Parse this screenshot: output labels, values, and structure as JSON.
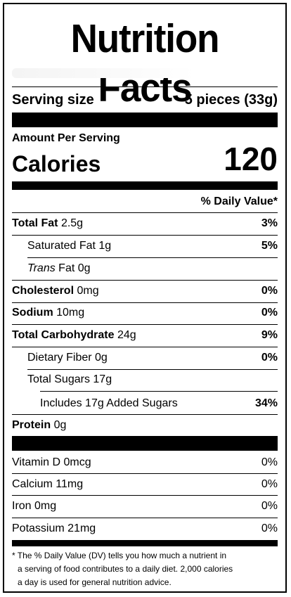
{
  "title": "Nutrition Facts",
  "serving": {
    "label": "Serving size",
    "value": "5 pieces (33g)"
  },
  "amount_per_serving": "Amount Per Serving",
  "calories": {
    "label": "Calories",
    "value": "120"
  },
  "daily_value_header": "% Daily Value*",
  "nutrients": [
    {
      "name": "Total Fat",
      "amount": "2.5g",
      "dv": "3%"
    },
    {
      "name": "Saturated Fat",
      "amount": "1g",
      "dv": "5%"
    },
    {
      "name": "Trans",
      "name_suffix": "Fat",
      "amount": "0g",
      "dv": ""
    },
    {
      "name": "Cholesterol",
      "amount": "0mg",
      "dv": "0%"
    },
    {
      "name": "Sodium",
      "amount": "10mg",
      "dv": "0%"
    },
    {
      "name": "Total Carbohydrate",
      "amount": "24g",
      "dv": "9%"
    },
    {
      "name": "Dietary Fiber",
      "amount": "0g",
      "dv": "0%"
    },
    {
      "name": "Total Sugars",
      "amount": "17g",
      "dv": ""
    },
    {
      "name": "Includes 17g Added Sugars",
      "amount": "",
      "dv": "34%"
    },
    {
      "name": "Protein",
      "amount": "0g",
      "dv": ""
    }
  ],
  "vitamins": [
    {
      "name": "Vitamin D",
      "amount": "0mcg",
      "dv": "0%"
    },
    {
      "name": "Calcium",
      "amount": "11mg",
      "dv": "0%"
    },
    {
      "name": "Iron",
      "amount": "0mg",
      "dv": "0%"
    },
    {
      "name": "Potassium",
      "amount": "21mg",
      "dv": "0%"
    }
  ],
  "footnote": [
    "* The % Daily Value (DV) tells you how much a nutrient in",
    "a serving of food contributes to a daily diet. 2,000 calories",
    "a day is used for general nutrition advice."
  ]
}
